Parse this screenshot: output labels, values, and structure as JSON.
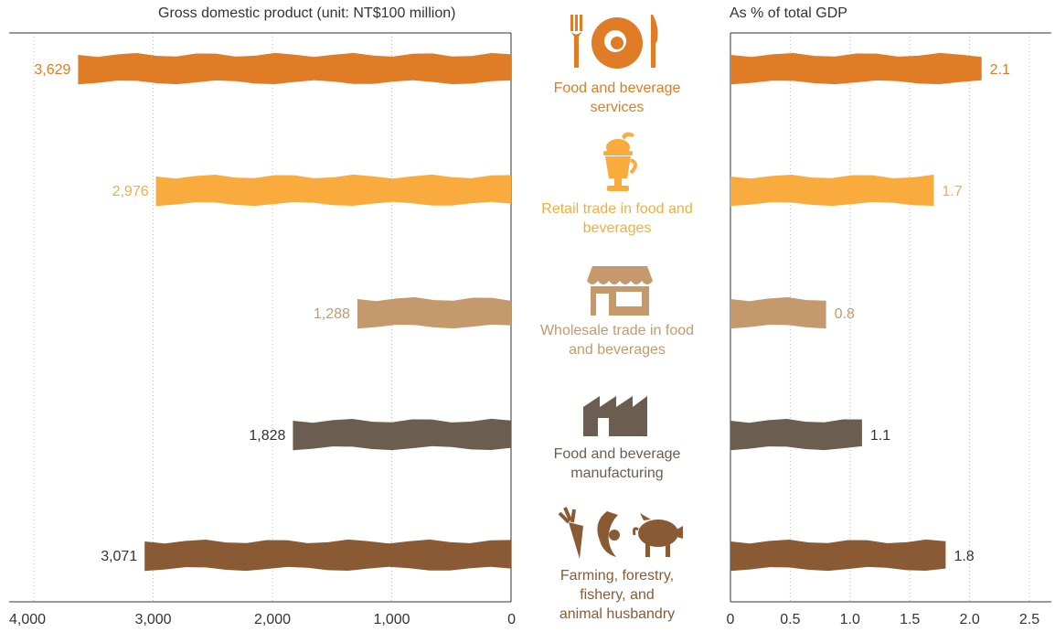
{
  "left_title": "Gross domestic product (unit: NT$100 million)",
  "right_title": "As % of total GDP",
  "categories": [
    {
      "label_lines": [
        "Food and beverage",
        "services"
      ],
      "color": "#e07b26",
      "icon": "plate-and-cutlery-icon"
    },
    {
      "label_lines": [
        "Retail trade in food and",
        "beverages"
      ],
      "color": "#f9ac3d",
      "icon": "milkshake-icon"
    },
    {
      "label_lines": [
        "Wholesale trade in food",
        "and beverages"
      ],
      "color": "#c49a6c",
      "icon": "storefront-icon"
    },
    {
      "label_lines": [
        "Food and beverage",
        "manufacturing"
      ],
      "color": "#6b5d50",
      "icon": "factory-icon"
    },
    {
      "label_lines": [
        "Farming, forestry,",
        "fishery, and",
        "animal husbandry"
      ],
      "color": "#8a5a34",
      "icon": "farm-produce-icon"
    }
  ],
  "chart_data": [
    {
      "type": "bar",
      "orientation": "horizontal",
      "title": "Gross domestic product (unit: NT$100 million)",
      "categories": [
        "Food and beverage services",
        "Retail trade in food and beverages",
        "Wholesale trade in food and beverages",
        "Food and beverage manufacturing",
        "Farming, forestry, fishery, and animal husbandry"
      ],
      "values": [
        3629,
        2976,
        1288,
        1828,
        3071
      ],
      "value_labels": [
        "3,629",
        "2,976",
        "1,288",
        "1,828",
        "3,071"
      ],
      "xlim": [
        0,
        4000
      ],
      "x_reversed": true,
      "ticks": [
        0,
        1000,
        2000,
        3000,
        4000
      ],
      "tick_labels": [
        "0",
        "1,000",
        "2,000",
        "3,000",
        "4,000"
      ],
      "grid": true
    },
    {
      "type": "bar",
      "orientation": "horizontal",
      "title": "As % of total GDP",
      "categories": [
        "Food and beverage services",
        "Retail trade in food and beverages",
        "Wholesale trade in food and beverages",
        "Food and beverage manufacturing",
        "Farming, forestry, fishery, and animal husbandry"
      ],
      "values": [
        2.1,
        1.7,
        0.8,
        1.1,
        1.8
      ],
      "value_labels": [
        "2.1",
        "1.7",
        "0.8",
        "1.1",
        "1.8"
      ],
      "xlim": [
        0,
        2.6
      ],
      "ticks": [
        0,
        0.5,
        1.0,
        1.5,
        2.0,
        2.5
      ],
      "tick_labels": [
        "0",
        "0.5",
        "1.0",
        "1.5",
        "2.0",
        "2.5"
      ],
      "grid": true
    }
  ]
}
